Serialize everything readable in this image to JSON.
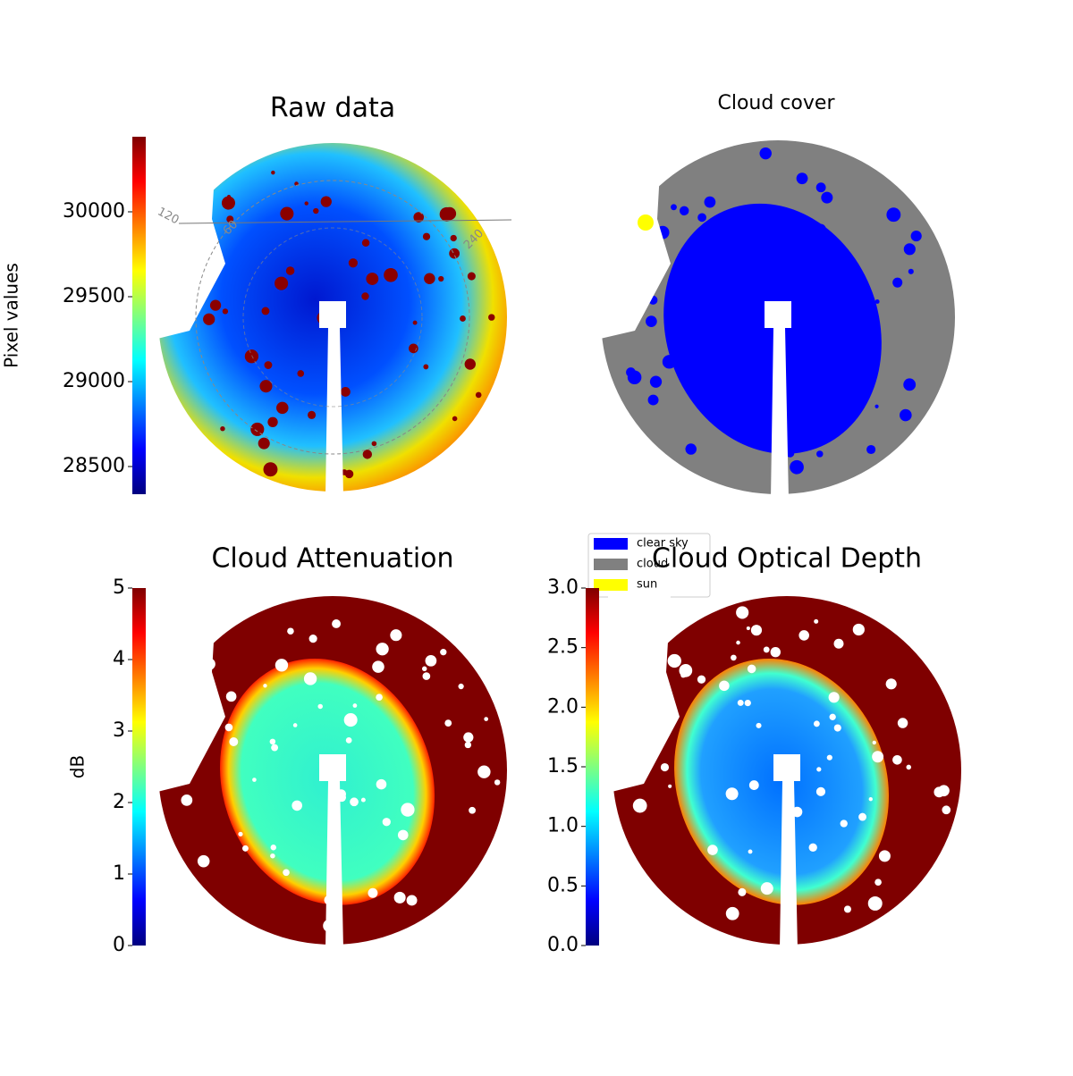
{
  "chart_data": [
    {
      "type": "image",
      "title": "Raw data",
      "colorbar": {
        "label": "Pixel values",
        "ylim": [
          28337,
          30442
        ],
        "yticks": [
          28500,
          29000,
          29500,
          30000
        ]
      },
      "annotations": [
        "120",
        "60",
        "240"
      ]
    },
    {
      "type": "image",
      "title": "Cloud cover",
      "legend": [
        {
          "name": "clear sky",
          "color": "#0000ff"
        },
        {
          "name": "cloud",
          "color": "#808080"
        },
        {
          "name": "sun",
          "color": "#ffff00"
        }
      ]
    },
    {
      "type": "image",
      "title": "Cloud Attenuation",
      "colorbar": {
        "label": "dB",
        "ylim": [
          0,
          5
        ],
        "yticks": [
          0,
          1,
          2,
          3,
          4,
          5
        ]
      }
    },
    {
      "type": "image",
      "title": "Cloud Optical Depth",
      "colorbar": {
        "ylim": [
          0,
          3
        ],
        "yticks": [
          {
            "value": 0,
            "label": "0.0"
          },
          0.5,
          {
            "value": 1,
            "label": "1.0"
          },
          1.5,
          {
            "value": 2,
            "label": "2.0"
          },
          2.5,
          {
            "value": 3,
            "label": "3.0"
          }
        ]
      }
    }
  ]
}
